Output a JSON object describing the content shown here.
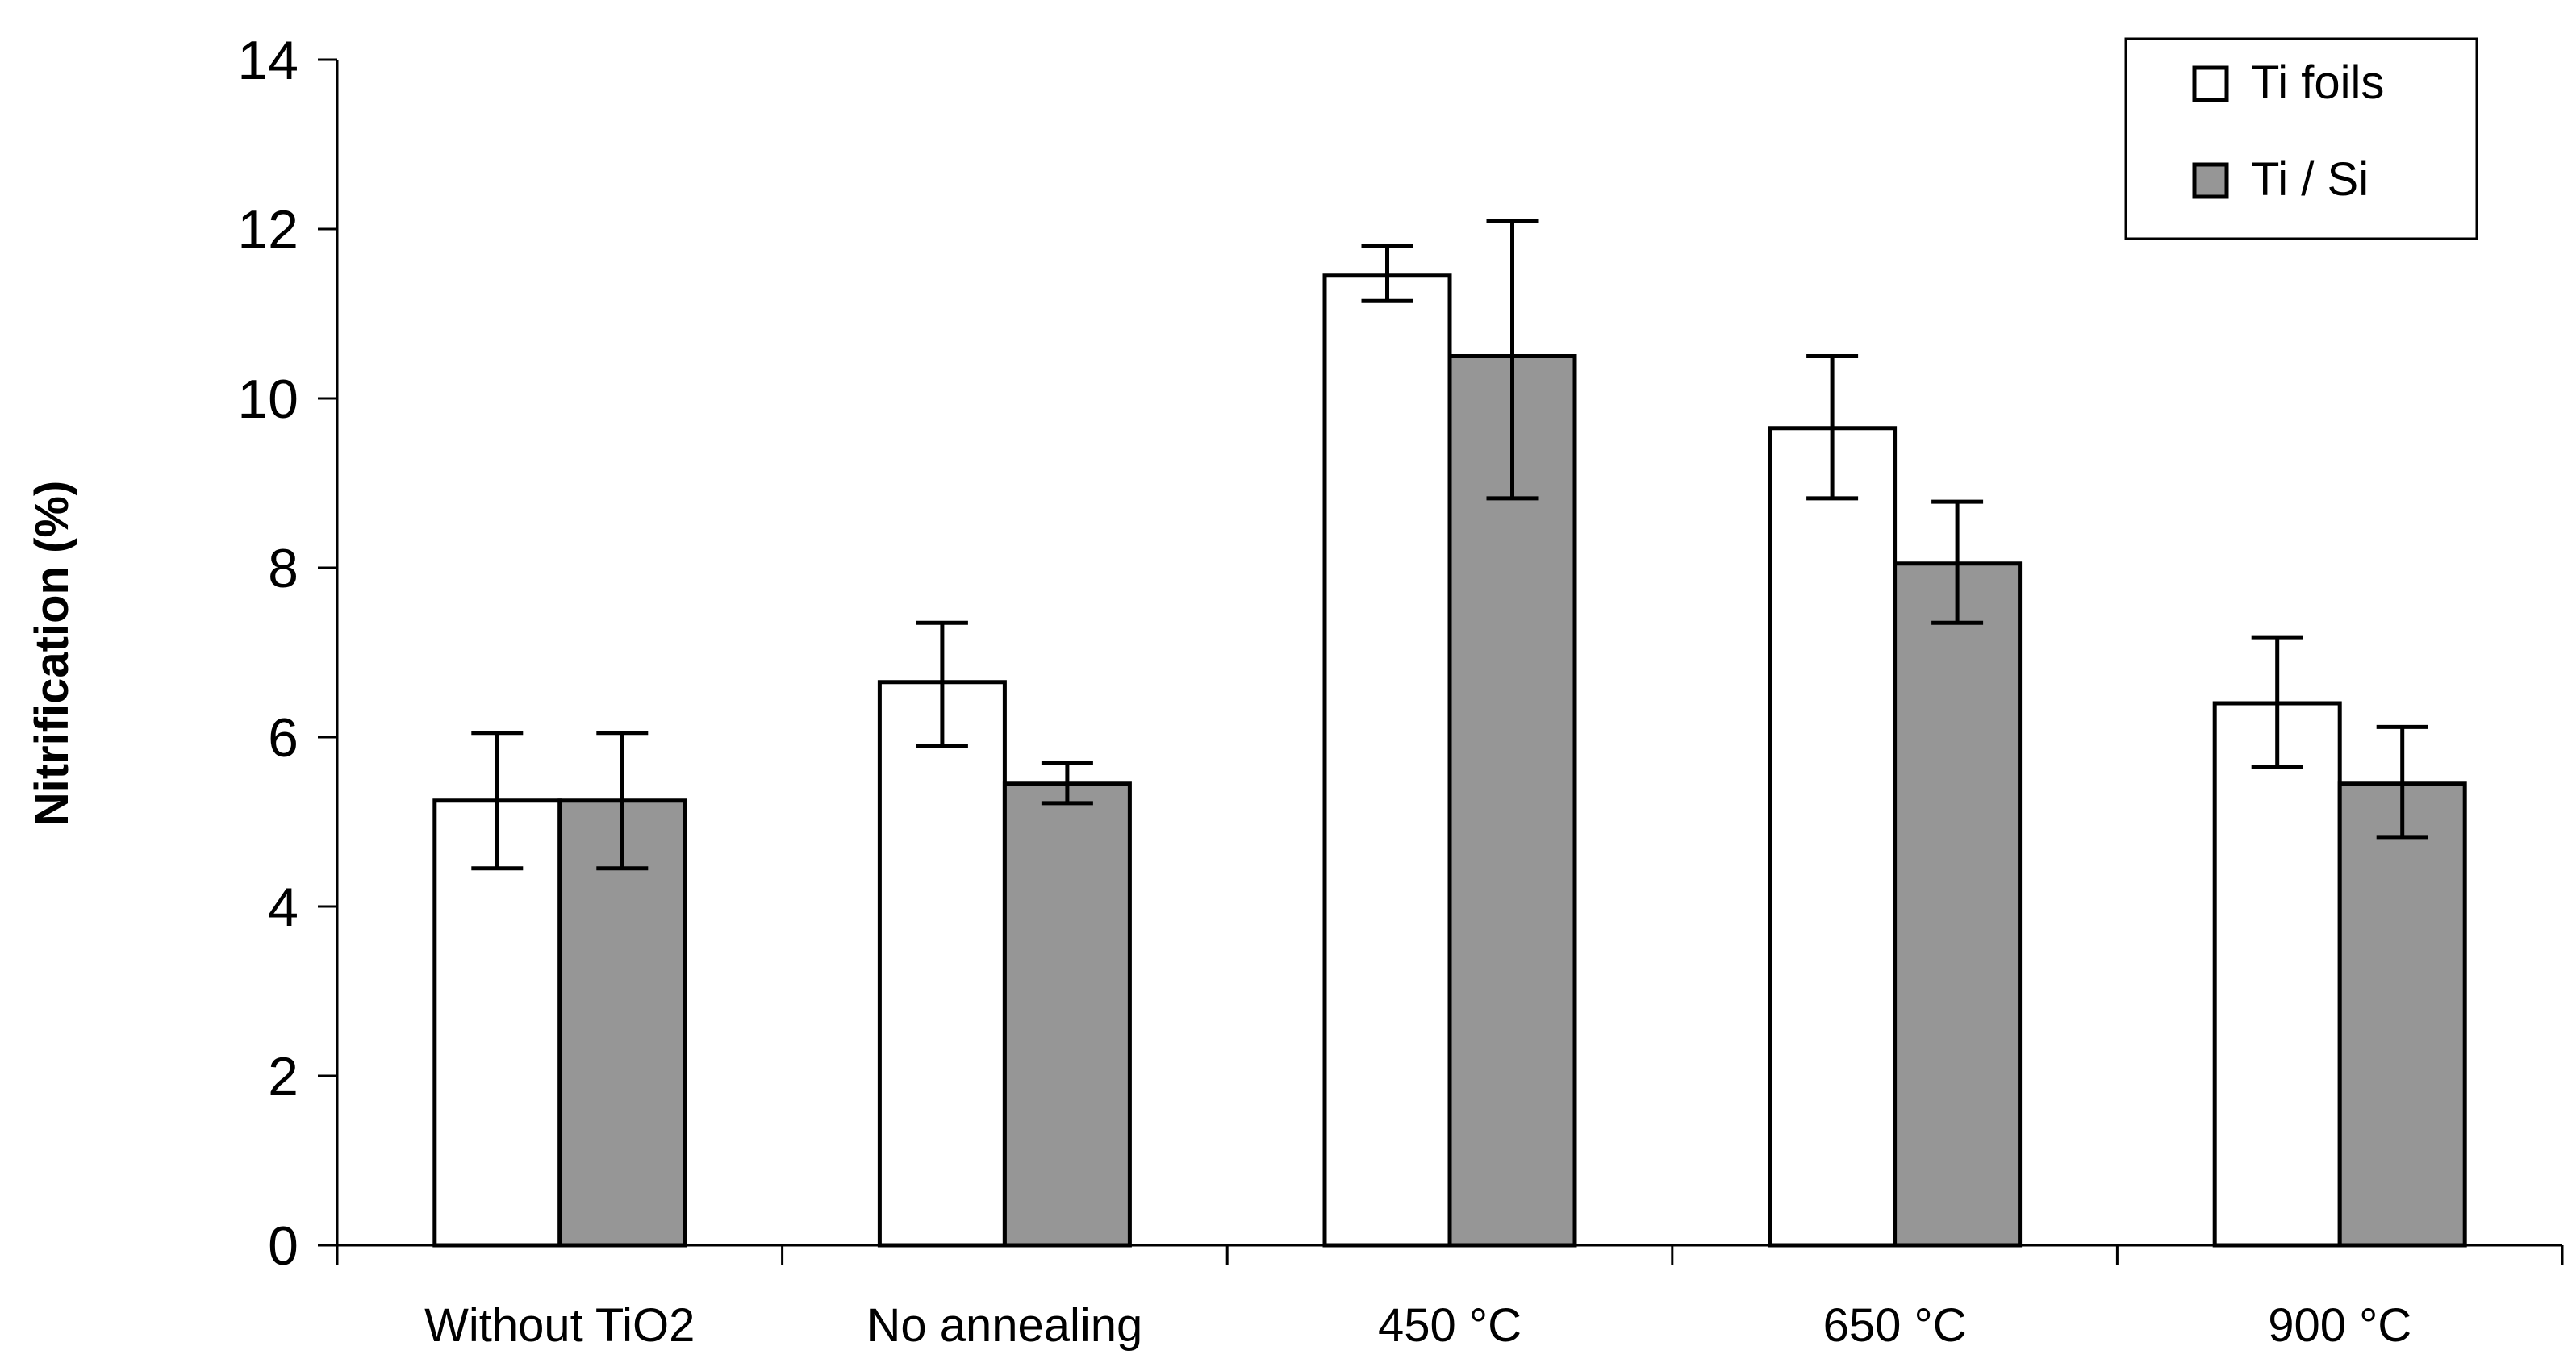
{
  "chart_data": {
    "type": "bar",
    "title": "",
    "xlabel": "",
    "ylabel": "Nitrification (%)",
    "ylim": [
      0,
      14
    ],
    "yticks": [
      "0",
      "2",
      "4",
      "6",
      "8",
      "10",
      "12",
      "14"
    ],
    "grid": false,
    "legend_position": "top-right",
    "categories": [
      "Without TiO2",
      "No annealing",
      "450 °C",
      "650 °C",
      "900 °C"
    ],
    "series": [
      {
        "name": "Ti foils",
        "color": "#ffffff",
        "values": [
          5.25,
          6.65,
          11.45,
          9.65,
          6.4
        ],
        "error_low": [
          4.45,
          5.9,
          11.15,
          8.82,
          5.65
        ],
        "error_high": [
          6.05,
          7.35,
          11.8,
          10.5,
          7.18
        ]
      },
      {
        "name": "Ti / Si",
        "color": "#969696",
        "values": [
          5.25,
          5.45,
          10.5,
          8.05,
          5.45
        ],
        "error_low": [
          4.45,
          5.22,
          8.82,
          7.35,
          4.82
        ],
        "error_high": [
          6.05,
          5.7,
          12.1,
          8.78,
          6.12
        ]
      }
    ]
  }
}
